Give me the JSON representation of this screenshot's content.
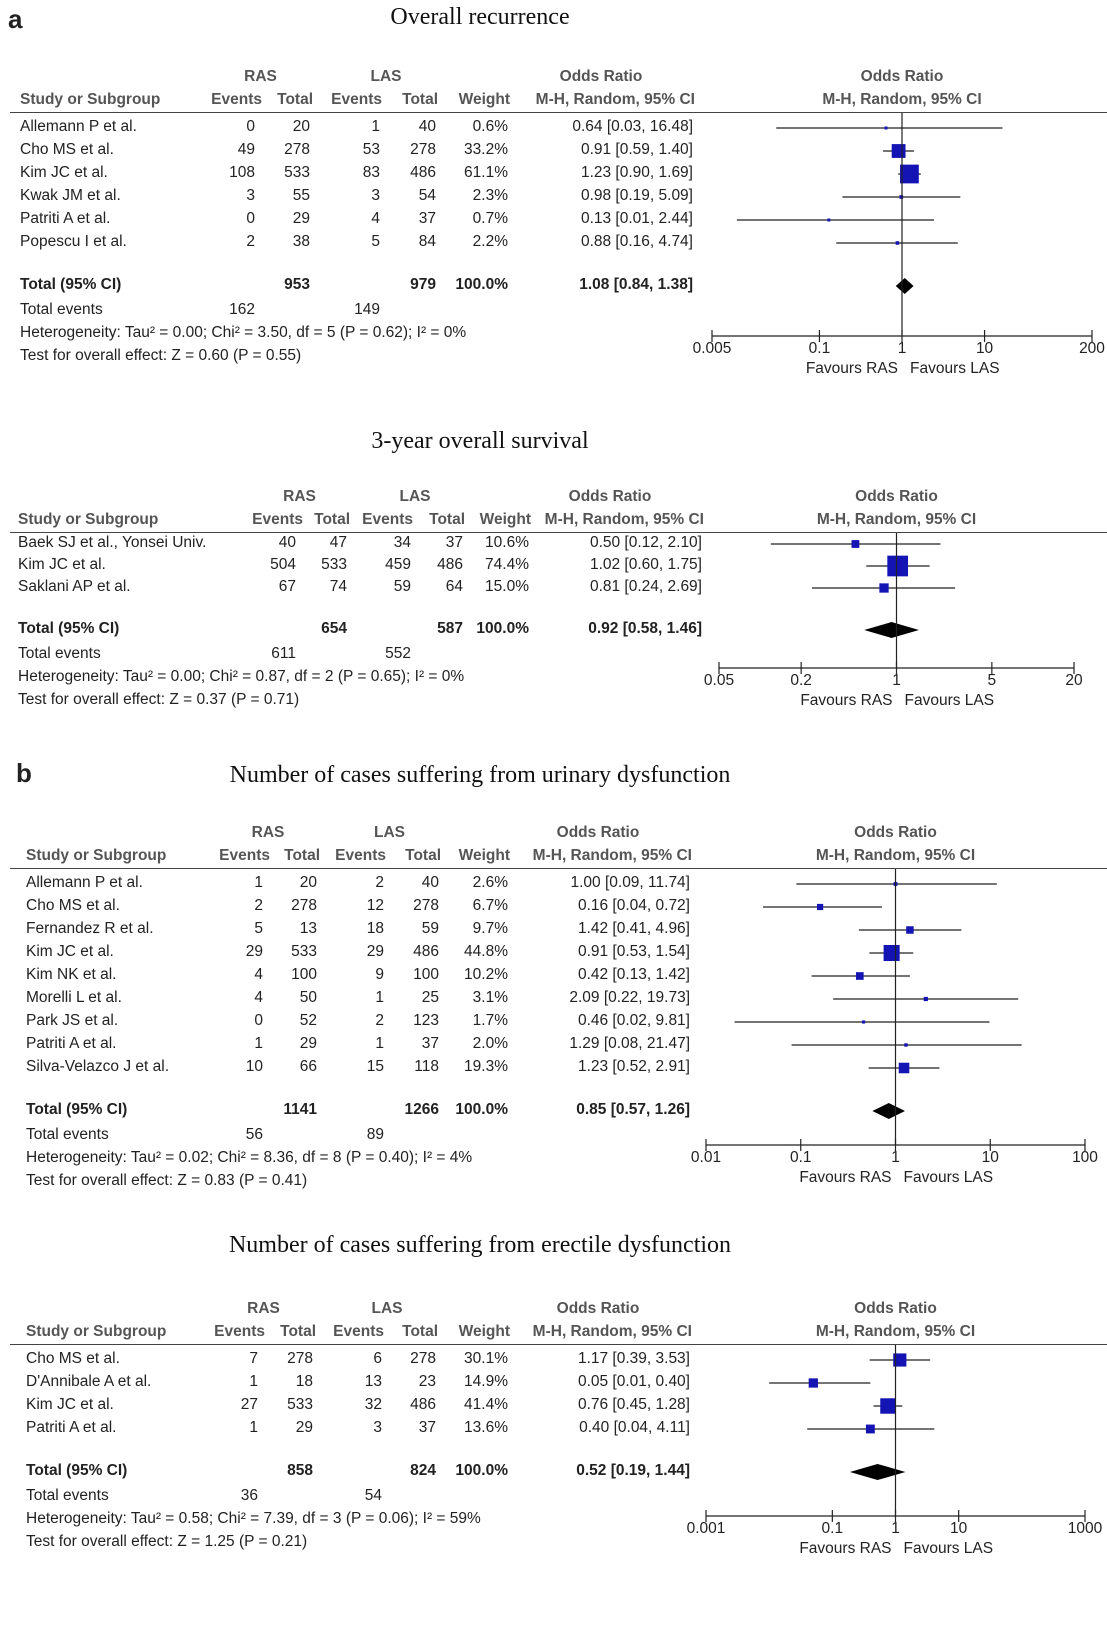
{
  "panel_labels": {
    "a": "a",
    "b": "b"
  },
  "colors": {
    "study_marker": "#1414b4",
    "diamond": "#000000",
    "line": "#222222"
  },
  "chart_data": [
    {
      "type": "forest",
      "title": "Overall recurrence",
      "headers": {
        "group1": "RAS",
        "group2": "LAS",
        "or_group": "Odds Ratio",
        "or_plot": "Odds Ratio",
        "study": "Study or Subgroup",
        "events1": "Events",
        "total1": "Total",
        "events2": "Events",
        "total2": "Total",
        "weight": "Weight",
        "method": "M-H, Random, 95% CI",
        "plot_method": "M-H, Random, 95% CI"
      },
      "studies": [
        {
          "name": "Allemann P et al.",
          "events1": "0",
          "total1": "20",
          "events2": "1",
          "total2": "40",
          "weight": "0.6%",
          "ci_text": "0.64 [0.03, 16.48]",
          "or": 0.64,
          "lo": 0.03,
          "hi": 16.48,
          "w": 0.6
        },
        {
          "name": "Cho MS et al.",
          "events1": "49",
          "total1": "278",
          "events2": "53",
          "total2": "278",
          "weight": "33.2%",
          "ci_text": "0.91 [0.59, 1.40]",
          "or": 0.91,
          "lo": 0.59,
          "hi": 1.4,
          "w": 33.2
        },
        {
          "name": "Kim JC et al.",
          "events1": "108",
          "total1": "533",
          "events2": "83",
          "total2": "486",
          "weight": "61.1%",
          "ci_text": "1.23 [0.90, 1.69]",
          "or": 1.23,
          "lo": 0.9,
          "hi": 1.69,
          "w": 61.1
        },
        {
          "name": "Kwak JM et al.",
          "events1": "3",
          "total1": "55",
          "events2": "3",
          "total2": "54",
          "weight": "2.3%",
          "ci_text": "0.98 [0.19, 5.09]",
          "or": 0.98,
          "lo": 0.19,
          "hi": 5.09,
          "w": 2.3
        },
        {
          "name": "Patriti A et al.",
          "events1": "0",
          "total1": "29",
          "events2": "4",
          "total2": "37",
          "weight": "0.7%",
          "ci_text": "0.13 [0.01, 2.44]",
          "or": 0.13,
          "lo": 0.01,
          "hi": 2.44,
          "w": 0.7
        },
        {
          "name": "Popescu I et al.",
          "events1": "2",
          "total1": "38",
          "events2": "5",
          "total2": "84",
          "weight": "2.2%",
          "ci_text": "0.88 [0.16, 4.74]",
          "or": 0.88,
          "lo": 0.16,
          "hi": 4.74,
          "w": 2.2
        }
      ],
      "total": {
        "label": "Total (95% CI)",
        "total1": "953",
        "total2": "979",
        "weight": "100.0%",
        "ci_text": "1.08 [0.84, 1.38]",
        "or": 1.08,
        "lo": 0.84,
        "hi": 1.38
      },
      "total_events": {
        "label": "Total events",
        "events1": "162",
        "events2": "149"
      },
      "heterogeneity": "Heterogeneity: Tau² = 0.00; Chi² = 3.50, df = 5 (P = 0.62); I² = 0%",
      "overall_effect": "Test for overall effect: Z = 0.60 (P = 0.55)",
      "axis": {
        "scale": "log",
        "min": 0.005,
        "max": 200,
        "ticks": [
          0.005,
          0.1,
          1,
          10,
          200
        ],
        "tick_labels": [
          "0.005",
          "0.1",
          "1",
          "10",
          "200"
        ]
      },
      "favours_left": "Favours RAS",
      "favours_right": "Favours LAS"
    },
    {
      "type": "forest",
      "title": "3-year overall survival",
      "headers": {
        "group1": "RAS",
        "group2": "LAS",
        "or_group": "Odds Ratio",
        "or_plot": "Odds Ratio",
        "study": "Study or Subgroup",
        "events1": "Events",
        "total1": "Total",
        "events2": "Events",
        "total2": "Total",
        "weight": "Weight",
        "method": "M-H, Random, 95% CI",
        "plot_method": "M-H, Random, 95% CI"
      },
      "studies": [
        {
          "name": "Baek SJ et al., Yonsei Univ.",
          "events1": "40",
          "total1": "47",
          "events2": "34",
          "total2": "37",
          "weight": "10.6%",
          "ci_text": "0.50 [0.12, 2.10]",
          "or": 0.5,
          "lo": 0.12,
          "hi": 2.1,
          "w": 10.6
        },
        {
          "name": "Kim JC et al.",
          "events1": "504",
          "total1": "533",
          "events2": "459",
          "total2": "486",
          "weight": "74.4%",
          "ci_text": "1.02 [0.60, 1.75]",
          "or": 1.02,
          "lo": 0.6,
          "hi": 1.75,
          "w": 74.4
        },
        {
          "name": "Saklani AP et al.",
          "events1": "67",
          "total1": "74",
          "events2": "59",
          "total2": "64",
          "weight": "15.0%",
          "ci_text": "0.81 [0.24, 2.69]",
          "or": 0.81,
          "lo": 0.24,
          "hi": 2.69,
          "w": 15.0
        }
      ],
      "total": {
        "label": "Total (95% CI)",
        "total1": "654",
        "total2": "587",
        "weight": "100.0%",
        "ci_text": "0.92 [0.58, 1.46]",
        "or": 0.92,
        "lo": 0.58,
        "hi": 1.46
      },
      "total_events": {
        "label": "Total events",
        "events1": "611",
        "events2": "552"
      },
      "heterogeneity": "Heterogeneity: Tau² = 0.00; Chi² = 0.87, df = 2 (P = 0.65); I² = 0%",
      "overall_effect": "Test for overall effect: Z = 0.37 (P = 0.71)",
      "axis": {
        "scale": "log",
        "min": 0.05,
        "max": 20,
        "ticks": [
          0.05,
          0.2,
          1,
          5,
          20
        ],
        "tick_labels": [
          "0.05",
          "0.2",
          "1",
          "5",
          "20"
        ]
      },
      "favours_left": "Favours RAS",
      "favours_right": "Favours LAS"
    },
    {
      "type": "forest",
      "title": "Number of cases suffering from urinary dysfunction",
      "headers": {
        "group1": "RAS",
        "group2": "LAS",
        "or_group": "Odds Ratio",
        "or_plot": "Odds Ratio",
        "study": "Study or Subgroup",
        "events1": "Events",
        "total1": "Total",
        "events2": "Events",
        "total2": "Total",
        "weight": "Weight",
        "method": "M-H, Random, 95% CI",
        "plot_method": "M-H, Random, 95% CI"
      },
      "studies": [
        {
          "name": "Allemann P et al.",
          "events1": "1",
          "total1": "20",
          "events2": "2",
          "total2": "40",
          "weight": "2.6%",
          "ci_text": "1.00 [0.09, 11.74]",
          "or": 1.0,
          "lo": 0.09,
          "hi": 11.74,
          "w": 2.6
        },
        {
          "name": "Cho MS et al.",
          "events1": "2",
          "total1": "278",
          "events2": "12",
          "total2": "278",
          "weight": "6.7%",
          "ci_text": "0.16 [0.04, 0.72]",
          "or": 0.16,
          "lo": 0.04,
          "hi": 0.72,
          "w": 6.7
        },
        {
          "name": "Fernandez R et al.",
          "events1": "5",
          "total1": "13",
          "events2": "18",
          "total2": "59",
          "weight": "9.7%",
          "ci_text": "1.42 [0.41, 4.96]",
          "or": 1.42,
          "lo": 0.41,
          "hi": 4.96,
          "w": 9.7
        },
        {
          "name": "Kim JC et al.",
          "events1": "29",
          "total1": "533",
          "events2": "29",
          "total2": "486",
          "weight": "44.8%",
          "ci_text": "0.91 [0.53, 1.54]",
          "or": 0.91,
          "lo": 0.53,
          "hi": 1.54,
          "w": 44.8
        },
        {
          "name": "Kim NK et al.",
          "events1": "4",
          "total1": "100",
          "events2": "9",
          "total2": "100",
          "weight": "10.2%",
          "ci_text": "0.42 [0.13, 1.42]",
          "or": 0.42,
          "lo": 0.13,
          "hi": 1.42,
          "w": 10.2
        },
        {
          "name": "Morelli L et al.",
          "events1": "4",
          "total1": "50",
          "events2": "1",
          "total2": "25",
          "weight": "3.1%",
          "ci_text": "2.09 [0.22, 19.73]",
          "or": 2.09,
          "lo": 0.22,
          "hi": 19.73,
          "w": 3.1
        },
        {
          "name": "Park JS et al.",
          "events1": "0",
          "total1": "52",
          "events2": "2",
          "total2": "123",
          "weight": "1.7%",
          "ci_text": "0.46 [0.02, 9.81]",
          "or": 0.46,
          "lo": 0.02,
          "hi": 9.81,
          "w": 1.7
        },
        {
          "name": "Patriti A et al.",
          "events1": "1",
          "total1": "29",
          "events2": "1",
          "total2": "37",
          "weight": "2.0%",
          "ci_text": "1.29 [0.08, 21.47]",
          "or": 1.29,
          "lo": 0.08,
          "hi": 21.47,
          "w": 2.0
        },
        {
          "name": "Silva-Velazco J et al.",
          "events1": "10",
          "total1": "66",
          "events2": "15",
          "total2": "118",
          "weight": "19.3%",
          "ci_text": "1.23 [0.52, 2.91]",
          "or": 1.23,
          "lo": 0.52,
          "hi": 2.91,
          "w": 19.3
        }
      ],
      "total": {
        "label": "Total (95% CI)",
        "total1": "1141",
        "total2": "1266",
        "weight": "100.0%",
        "ci_text": "0.85 [0.57, 1.26]",
        "or": 0.85,
        "lo": 0.57,
        "hi": 1.26
      },
      "total_events": {
        "label": "Total events",
        "events1": "56",
        "events2": "89"
      },
      "heterogeneity": "Heterogeneity: Tau² = 0.02; Chi² = 8.36, df = 8 (P = 0.40); I² = 4%",
      "overall_effect": "Test for overall effect: Z = 0.83 (P = 0.41)",
      "axis": {
        "scale": "log",
        "min": 0.01,
        "max": 100,
        "ticks": [
          0.01,
          0.1,
          1,
          10,
          100
        ],
        "tick_labels": [
          "0.01",
          "0.1",
          "1",
          "10",
          "100"
        ]
      },
      "favours_left": "Favours RAS",
      "favours_right": "Favours LAS"
    },
    {
      "type": "forest",
      "title": "Number of cases suffering from erectile dysfunction",
      "headers": {
        "group1": "RAS",
        "group2": "LAS",
        "or_group": "Odds Ratio",
        "or_plot": "Odds Ratio",
        "study": "Study or Subgroup",
        "events1": "Events",
        "total1": "Total",
        "events2": "Events",
        "total2": "Total",
        "weight": "Weight",
        "method": "M-H, Random, 95% CI",
        "plot_method": "M-H, Random, 95% CI"
      },
      "studies": [
        {
          "name": "Cho MS et al.",
          "events1": "7",
          "total1": "278",
          "events2": "6",
          "total2": "278",
          "weight": "30.1%",
          "ci_text": "1.17 [0.39, 3.53]",
          "or": 1.17,
          "lo": 0.39,
          "hi": 3.53,
          "w": 30.1
        },
        {
          "name": "D'Annibale A et al.",
          "events1": "1",
          "total1": "18",
          "events2": "13",
          "total2": "23",
          "weight": "14.9%",
          "ci_text": "0.05 [0.01, 0.40]",
          "or": 0.05,
          "lo": 0.01,
          "hi": 0.4,
          "w": 14.9
        },
        {
          "name": "Kim JC et al.",
          "events1": "27",
          "total1": "533",
          "events2": "32",
          "total2": "486",
          "weight": "41.4%",
          "ci_text": "0.76 [0.45, 1.28]",
          "or": 0.76,
          "lo": 0.45,
          "hi": 1.28,
          "w": 41.4
        },
        {
          "name": "Patriti A et al.",
          "events1": "1",
          "total1": "29",
          "events2": "3",
          "total2": "37",
          "weight": "13.6%",
          "ci_text": "0.40 [0.04, 4.11]",
          "or": 0.4,
          "lo": 0.04,
          "hi": 4.11,
          "w": 13.6
        }
      ],
      "total": {
        "label": "Total (95% CI)",
        "total1": "858",
        "total2": "824",
        "weight": "100.0%",
        "ci_text": "0.52 [0.19, 1.44]",
        "or": 0.52,
        "lo": 0.19,
        "hi": 1.44
      },
      "total_events": {
        "label": "Total events",
        "events1": "36",
        "events2": "54"
      },
      "heterogeneity": "Heterogeneity: Tau² = 0.58; Chi² = 7.39, df = 3 (P = 0.06); I² = 59%",
      "overall_effect": "Test for overall effect: Z = 1.25 (P = 0.21)",
      "axis": {
        "scale": "log",
        "min": 0.001,
        "max": 1000,
        "ticks": [
          0.001,
          0.1,
          1,
          10,
          1000
        ],
        "tick_labels": [
          "0.001",
          "0.1",
          "1",
          "10",
          "1000"
        ]
      },
      "favours_left": "Favours RAS",
      "favours_right": "Favours LAS"
    }
  ]
}
